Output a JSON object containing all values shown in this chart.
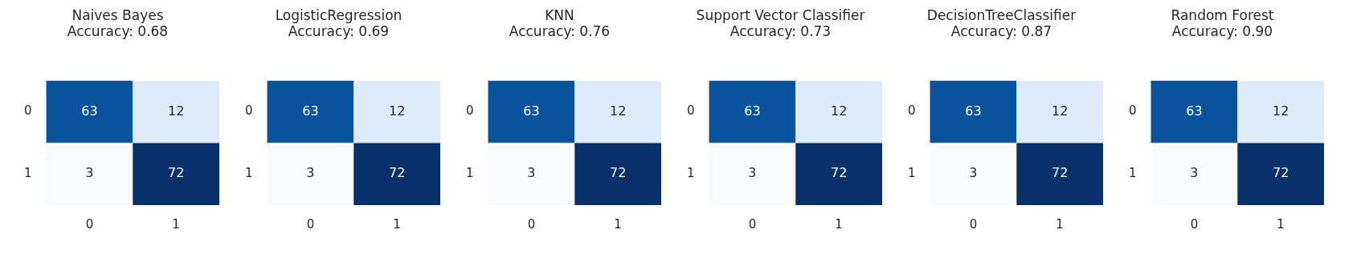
{
  "chart_data": [
    {
      "type": "heatmap",
      "title": "Naives Bayes",
      "subtitle": "Accuracy: 0.68",
      "data_labels": true,
      "categories": [
        "0",
        "1"
      ],
      "y_categories": [
        "0",
        "1"
      ],
      "cells": [
        [
          63,
          12
        ],
        [
          3,
          72
        ]
      ]
    },
    {
      "type": "heatmap",
      "title": "LogisticRegression",
      "subtitle": "Accuracy: 0.69",
      "data_labels": true,
      "categories": [
        "0",
        "1"
      ],
      "y_categories": [
        "0",
        "1"
      ],
      "cells": [
        [
          63,
          12
        ],
        [
          3,
          72
        ]
      ]
    },
    {
      "type": "heatmap",
      "title": "KNN",
      "subtitle": "Accuracy: 0.76",
      "data_labels": true,
      "categories": [
        "0",
        "1"
      ],
      "y_categories": [
        "0",
        "1"
      ],
      "cells": [
        [
          63,
          12
        ],
        [
          3,
          72
        ]
      ]
    },
    {
      "type": "heatmap",
      "title": "Support Vector Classifier",
      "subtitle": "Accuracy: 0.73",
      "data_labels": true,
      "categories": [
        "0",
        "1"
      ],
      "y_categories": [
        "0",
        "1"
      ],
      "cells": [
        [
          63,
          12
        ],
        [
          3,
          72
        ]
      ]
    },
    {
      "type": "heatmap",
      "title": "DecisionTreeClassifier",
      "subtitle": "Accuracy: 0.87",
      "data_labels": true,
      "categories": [
        "0",
        "1"
      ],
      "y_categories": [
        "0",
        "1"
      ],
      "cells": [
        [
          63,
          12
        ],
        [
          3,
          72
        ]
      ]
    },
    {
      "type": "heatmap",
      "title": "Random Forest",
      "subtitle": "Accuracy: 0.90",
      "data_labels": true,
      "categories": [
        "0",
        "1"
      ],
      "y_categories": [
        "0",
        "1"
      ],
      "cells": [
        [
          63,
          12
        ],
        [
          3,
          72
        ]
      ]
    }
  ]
}
